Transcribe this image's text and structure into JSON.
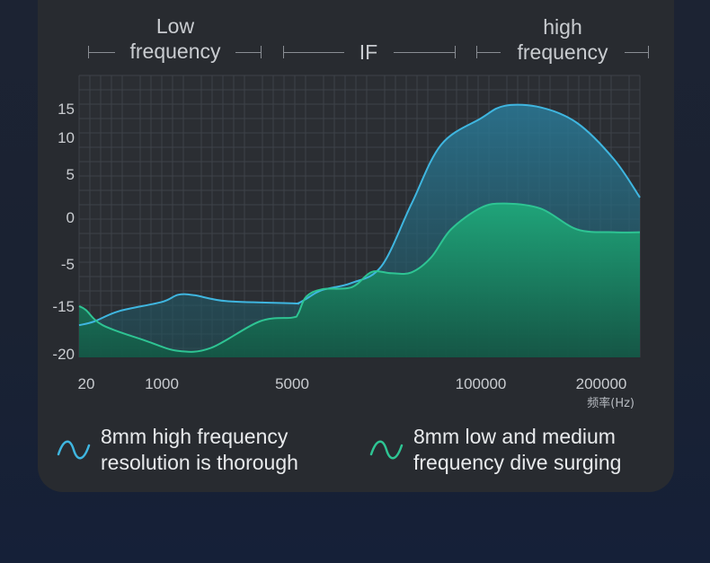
{
  "bands": [
    {
      "label_line1": "Low",
      "label_line2": "frequency"
    },
    {
      "label_line1": "",
      "label_line2": "IF"
    },
    {
      "label_line1": "high",
      "label_line2": "frequency"
    }
  ],
  "legend": [
    {
      "line1": "8mm high frequency",
      "line2": "resolution is thorough",
      "color": "#3fb6e0"
    },
    {
      "line1": "8mm low and medium",
      "line2": "frequency dive surging",
      "color": "#2ec493"
    }
  ],
  "chart_data": {
    "type": "area",
    "xlabel": "频率(Hz)",
    "x_ticks": [
      "20",
      "1000",
      "5000",
      "100000",
      "200000"
    ],
    "y_ticks": [
      "15",
      "10",
      "5",
      "0",
      "-5",
      "-15",
      "-20"
    ],
    "series": [
      {
        "name": "8mm high frequency resolution is thorough",
        "color": "#3fb6e0",
        "points": [
          [
            20,
            -17
          ],
          [
            200,
            -16.6
          ],
          [
            500,
            -15.5
          ],
          [
            1000,
            -14
          ],
          [
            1500,
            -12.3
          ],
          [
            2000,
            -12.4
          ],
          [
            3000,
            -13.8
          ],
          [
            5000,
            -14.3
          ],
          [
            8000,
            -14.3
          ],
          [
            12000,
            -13.3
          ],
          [
            20000,
            -11.2
          ],
          [
            35000,
            -9.5
          ],
          [
            50000,
            -5.5
          ],
          [
            65000,
            1.5
          ],
          [
            80000,
            9
          ],
          [
            100000,
            13.3
          ],
          [
            120000,
            15.5
          ],
          [
            150000,
            15.2
          ],
          [
            180000,
            12.5
          ],
          [
            210000,
            7
          ],
          [
            230000,
            2.3
          ]
        ]
      },
      {
        "name": "8mm low and medium frequency dive surging",
        "color": "#2ec493",
        "points": [
          [
            20,
            -15
          ],
          [
            100,
            -15.4
          ],
          [
            300,
            -17
          ],
          [
            800,
            -18.6
          ],
          [
            1500,
            -19.7
          ],
          [
            2500,
            -19.4
          ],
          [
            4000,
            -16.6
          ],
          [
            5000,
            -16.2
          ],
          [
            8000,
            -15.8
          ],
          [
            12000,
            -12.8
          ],
          [
            20000,
            -11
          ],
          [
            35000,
            -10.5
          ],
          [
            45000,
            -6.9
          ],
          [
            55000,
            -7.2
          ],
          [
            65000,
            -7
          ],
          [
            75000,
            -4.3
          ],
          [
            85000,
            -1.3
          ],
          [
            100000,
            1.1
          ],
          [
            120000,
            1.6
          ],
          [
            150000,
            1
          ],
          [
            180000,
            -1.3
          ],
          [
            210000,
            -1.6
          ],
          [
            230000,
            -1.6
          ]
        ]
      }
    ]
  }
}
